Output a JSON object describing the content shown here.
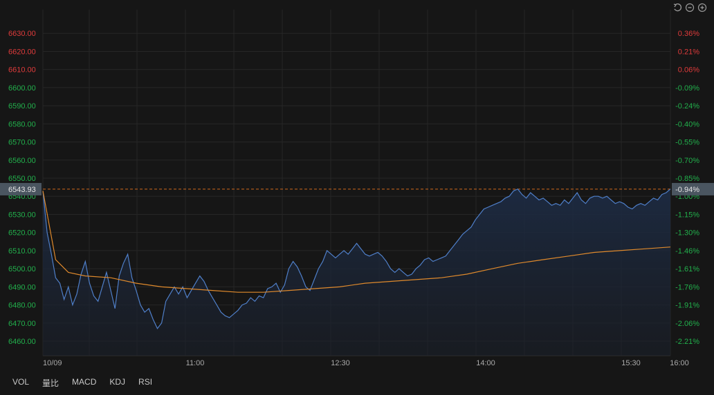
{
  "chart_data": {
    "type": "line",
    "prev_close": 6606.6,
    "ylim": [
      6452,
      6640
    ],
    "y_ticks": [
      {
        "v": 6630,
        "t": "6630.00"
      },
      {
        "v": 6620,
        "t": "6620.00"
      },
      {
        "v": 6610,
        "t": "6610.00"
      },
      {
        "v": 6600,
        "t": "6600.00"
      },
      {
        "v": 6590,
        "t": "6590.00"
      },
      {
        "v": 6580,
        "t": "6580.00"
      },
      {
        "v": 6570,
        "t": "6570.00"
      },
      {
        "v": 6560,
        "t": "6560.00"
      },
      {
        "v": 6550,
        "t": "6550.00"
      },
      {
        "v": 6540,
        "t": "6540.00"
      },
      {
        "v": 6530,
        "t": "6530.00"
      },
      {
        "v": 6520,
        "t": "6520.00"
      },
      {
        "v": 6510,
        "t": "6510.00"
      },
      {
        "v": 6500,
        "t": "6500.00"
      },
      {
        "v": 6490,
        "t": "6490.00"
      },
      {
        "v": 6480,
        "t": "6480.00"
      },
      {
        "v": 6470,
        "t": "6470.00"
      },
      {
        "v": 6460,
        "t": "6460.00"
      }
    ],
    "pct_ticks": [
      {
        "v": 6630,
        "t": "0.36%"
      },
      {
        "v": 6620,
        "t": "0.21%"
      },
      {
        "v": 6610,
        "t": "0.06%"
      },
      {
        "v": 6600,
        "t": "-0.09%"
      },
      {
        "v": 6590,
        "t": "-0.24%"
      },
      {
        "v": 6580,
        "t": "-0.40%"
      },
      {
        "v": 6570,
        "t": "-0.55%"
      },
      {
        "v": 6560,
        "t": "-0.70%"
      },
      {
        "v": 6550,
        "t": "-0.85%"
      },
      {
        "v": 6540,
        "t": "-1.00%"
      },
      {
        "v": 6530,
        "t": "-1.15%"
      },
      {
        "v": 6520,
        "t": "-1.30%"
      },
      {
        "v": 6510,
        "t": "-1.46%"
      },
      {
        "v": 6500,
        "t": "-1.61%"
      },
      {
        "v": 6490,
        "t": "-1.76%"
      },
      {
        "v": 6480,
        "t": "-1.91%"
      },
      {
        "v": 6470,
        "t": "-2.06%"
      },
      {
        "v": 6460,
        "t": "-2.21%"
      }
    ],
    "x_ticks": [
      "10/09",
      "11:00",
      "12:30",
      "14:00",
      "15:30",
      "16:00"
    ],
    "current_price": 6543.93,
    "current_price_label": "6543.93",
    "current_pct_label": "-0.94%",
    "price_series": [
      [
        0,
        6543
      ],
      [
        1,
        6520
      ],
      [
        2,
        6508
      ],
      [
        3,
        6495
      ],
      [
        4,
        6492
      ],
      [
        5,
        6483
      ],
      [
        6,
        6490
      ],
      [
        7,
        6480
      ],
      [
        8,
        6486
      ],
      [
        9,
        6497
      ],
      [
        10,
        6504
      ],
      [
        11,
        6492
      ],
      [
        12,
        6485
      ],
      [
        13,
        6482
      ],
      [
        14,
        6490
      ],
      [
        15,
        6498
      ],
      [
        16,
        6488
      ],
      [
        17,
        6478
      ],
      [
        18,
        6496
      ],
      [
        19,
        6503
      ],
      [
        20,
        6508
      ],
      [
        21,
        6495
      ],
      [
        22,
        6488
      ],
      [
        23,
        6480
      ],
      [
        24,
        6476
      ],
      [
        25,
        6478
      ],
      [
        26,
        6472
      ],
      [
        27,
        6467
      ],
      [
        28,
        6470
      ],
      [
        29,
        6482
      ],
      [
        30,
        6486
      ],
      [
        31,
        6490
      ],
      [
        32,
        6486
      ],
      [
        33,
        6490
      ],
      [
        34,
        6484
      ],
      [
        35,
        6488
      ],
      [
        36,
        6492
      ],
      [
        37,
        6496
      ],
      [
        38,
        6493
      ],
      [
        39,
        6488
      ],
      [
        40,
        6484
      ],
      [
        41,
        6480
      ],
      [
        42,
        6476
      ],
      [
        43,
        6474
      ],
      [
        44,
        6473
      ],
      [
        45,
        6475
      ],
      [
        46,
        6477
      ],
      [
        47,
        6480
      ],
      [
        48,
        6481
      ],
      [
        49,
        6484
      ],
      [
        50,
        6482
      ],
      [
        51,
        6485
      ],
      [
        52,
        6484
      ],
      [
        53,
        6489
      ],
      [
        54,
        6490
      ],
      [
        55,
        6492
      ],
      [
        56,
        6487
      ],
      [
        57,
        6491
      ],
      [
        58,
        6500
      ],
      [
        59,
        6504
      ],
      [
        60,
        6501
      ],
      [
        61,
        6496
      ],
      [
        62,
        6490
      ],
      [
        63,
        6488
      ],
      [
        64,
        6494
      ],
      [
        65,
        6500
      ],
      [
        66,
        6504
      ],
      [
        67,
        6510
      ],
      [
        68,
        6508
      ],
      [
        69,
        6506
      ],
      [
        70,
        6508
      ],
      [
        71,
        6510
      ],
      [
        72,
        6508
      ],
      [
        73,
        6511
      ],
      [
        74,
        6514
      ],
      [
        75,
        6511
      ],
      [
        76,
        6508
      ],
      [
        77,
        6507
      ],
      [
        78,
        6508
      ],
      [
        79,
        6509
      ],
      [
        80,
        6507
      ],
      [
        81,
        6504
      ],
      [
        82,
        6500
      ],
      [
        83,
        6498
      ],
      [
        84,
        6500
      ],
      [
        85,
        6498
      ],
      [
        86,
        6496
      ],
      [
        87,
        6497
      ],
      [
        88,
        6500
      ],
      [
        89,
        6502
      ],
      [
        90,
        6505
      ],
      [
        91,
        6506
      ],
      [
        92,
        6504
      ],
      [
        93,
        6505
      ],
      [
        94,
        6506
      ],
      [
        95,
        6507
      ],
      [
        96,
        6510
      ],
      [
        97,
        6513
      ],
      [
        98,
        6516
      ],
      [
        99,
        6519
      ],
      [
        100,
        6521
      ],
      [
        101,
        6523
      ],
      [
        102,
        6527
      ],
      [
        103,
        6530
      ],
      [
        104,
        6533
      ],
      [
        105,
        6534
      ],
      [
        106,
        6535
      ],
      [
        107,
        6536
      ],
      [
        108,
        6537
      ],
      [
        109,
        6539
      ],
      [
        110,
        6540
      ],
      [
        111,
        6543
      ],
      [
        112,
        6544
      ],
      [
        113,
        6541
      ],
      [
        114,
        6539
      ],
      [
        115,
        6542
      ],
      [
        116,
        6540
      ],
      [
        117,
        6538
      ],
      [
        118,
        6539
      ],
      [
        119,
        6537
      ],
      [
        120,
        6535
      ],
      [
        121,
        6536
      ],
      [
        122,
        6535
      ],
      [
        123,
        6538
      ],
      [
        124,
        6536
      ],
      [
        125,
        6539
      ],
      [
        126,
        6542
      ],
      [
        127,
        6538
      ],
      [
        128,
        6536
      ],
      [
        129,
        6539
      ],
      [
        130,
        6540
      ],
      [
        131,
        6540
      ],
      [
        132,
        6539
      ],
      [
        133,
        6540
      ],
      [
        134,
        6538
      ],
      [
        135,
        6536
      ],
      [
        136,
        6537
      ],
      [
        137,
        6536
      ],
      [
        138,
        6534
      ],
      [
        139,
        6533
      ],
      [
        140,
        6535
      ],
      [
        141,
        6536
      ],
      [
        142,
        6535
      ],
      [
        143,
        6537
      ],
      [
        144,
        6539
      ],
      [
        145,
        6538
      ],
      [
        146,
        6541
      ],
      [
        147,
        6542
      ],
      [
        148,
        6544
      ]
    ],
    "avg_series": [
      [
        0,
        6543
      ],
      [
        3,
        6505
      ],
      [
        6,
        6498
      ],
      [
        10,
        6496
      ],
      [
        16,
        6495
      ],
      [
        22,
        6492
      ],
      [
        28,
        6490
      ],
      [
        34,
        6489
      ],
      [
        40,
        6488
      ],
      [
        46,
        6487
      ],
      [
        52,
        6487
      ],
      [
        58,
        6488
      ],
      [
        64,
        6489
      ],
      [
        70,
        6490
      ],
      [
        76,
        6492
      ],
      [
        82,
        6493
      ],
      [
        88,
        6494
      ],
      [
        94,
        6495
      ],
      [
        100,
        6497
      ],
      [
        106,
        6500
      ],
      [
        112,
        6503
      ],
      [
        118,
        6505
      ],
      [
        124,
        6507
      ],
      [
        130,
        6509
      ],
      [
        136,
        6510
      ],
      [
        142,
        6511
      ],
      [
        148,
        6512
      ]
    ],
    "x_max": 148
  },
  "colors": {
    "up": "#e03b3b",
    "down": "#22b04c",
    "price_line": "#4f7fc9",
    "avg_line": "#e08a2c",
    "ref_line": "#d2691e",
    "grid": "#262626"
  },
  "icons": [
    "reset-icon",
    "zoom-out-icon",
    "zoom-in-icon"
  ],
  "indicator_tabs": [
    "VOL",
    "量比",
    "MACD",
    "KDJ",
    "RSI"
  ]
}
